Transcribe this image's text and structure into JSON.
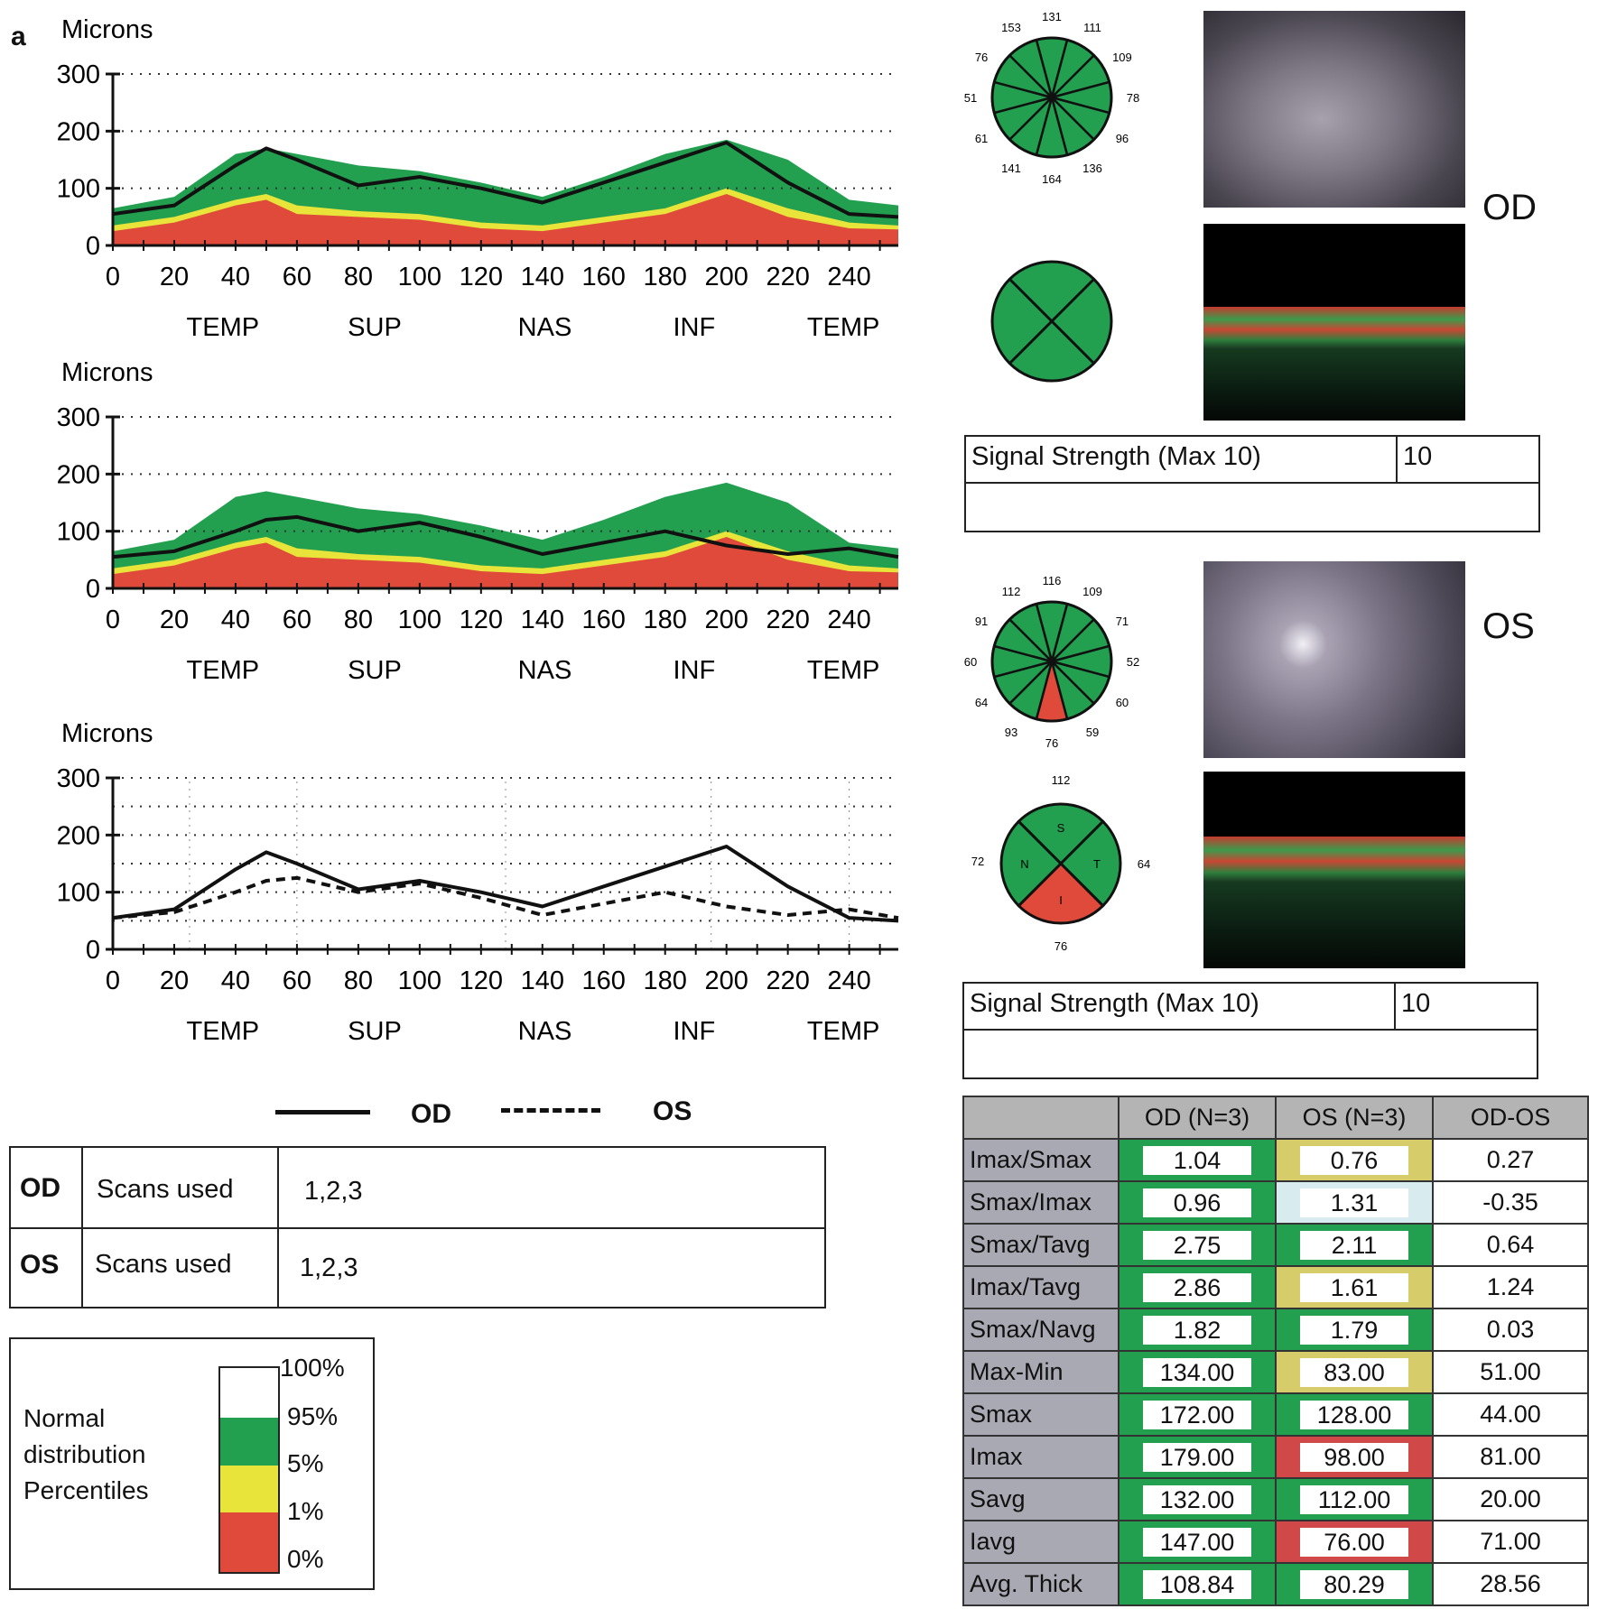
{
  "panel_label": "a",
  "chart_data": [
    {
      "type": "area",
      "ylabel": "Microns",
      "ylim": [
        0,
        300
      ],
      "yticks": [
        0,
        100,
        200,
        300
      ],
      "xlim": [
        0,
        256
      ],
      "xticks": [
        0,
        20,
        40,
        60,
        80,
        100,
        120,
        140,
        160,
        180,
        200,
        220,
        240
      ],
      "region_labels": [
        "TEMP",
        "SUP",
        "NAS",
        "INF",
        "TEMP"
      ],
      "x": [
        0,
        20,
        40,
        50,
        60,
        80,
        100,
        120,
        140,
        160,
        180,
        200,
        220,
        240,
        256
      ],
      "bands": [
        {
          "name": "95%",
          "color": "#22a050",
          "values": [
            65,
            85,
            160,
            170,
            160,
            140,
            130,
            110,
            85,
            120,
            160,
            185,
            150,
            80,
            70
          ]
        },
        {
          "name": "5%",
          "color": "#e8e43a",
          "values": [
            35,
            50,
            80,
            90,
            70,
            60,
            55,
            40,
            35,
            50,
            65,
            100,
            65,
            40,
            35
          ]
        },
        {
          "name": "1%",
          "color": "#e04a3a",
          "values": [
            25,
            40,
            70,
            80,
            55,
            50,
            45,
            30,
            25,
            40,
            55,
            90,
            50,
            30,
            28
          ]
        }
      ],
      "series": [
        {
          "name": "OD",
          "values": [
            55,
            70,
            140,
            170,
            150,
            105,
            120,
            100,
            75,
            110,
            145,
            180,
            110,
            55,
            50
          ]
        }
      ]
    },
    {
      "type": "area",
      "ylabel": "Microns",
      "ylim": [
        0,
        300
      ],
      "yticks": [
        0,
        100,
        200,
        300
      ],
      "xlim": [
        0,
        256
      ],
      "xticks": [
        0,
        20,
        40,
        60,
        80,
        100,
        120,
        140,
        160,
        180,
        200,
        220,
        240
      ],
      "region_labels": [
        "TEMP",
        "SUP",
        "NAS",
        "INF",
        "TEMP"
      ],
      "x": [
        0,
        20,
        40,
        50,
        60,
        80,
        100,
        120,
        140,
        160,
        180,
        200,
        220,
        240,
        256
      ],
      "bands": [
        {
          "name": "95%",
          "color": "#22a050",
          "values": [
            65,
            85,
            160,
            170,
            160,
            140,
            130,
            110,
            85,
            120,
            160,
            185,
            150,
            80,
            70
          ]
        },
        {
          "name": "5%",
          "color": "#e8e43a",
          "values": [
            35,
            50,
            80,
            90,
            70,
            60,
            55,
            40,
            35,
            50,
            65,
            100,
            65,
            40,
            35
          ]
        },
        {
          "name": "1%",
          "color": "#e04a3a",
          "values": [
            25,
            40,
            70,
            80,
            55,
            50,
            45,
            30,
            25,
            40,
            55,
            90,
            50,
            30,
            28
          ]
        }
      ],
      "series": [
        {
          "name": "OS",
          "values": [
            55,
            65,
            100,
            120,
            125,
            100,
            115,
            90,
            60,
            80,
            100,
            75,
            60,
            70,
            55
          ]
        }
      ]
    },
    {
      "type": "line",
      "ylabel": "Microns",
      "ylim": [
        0,
        300
      ],
      "yticks": [
        0,
        100,
        200,
        300
      ],
      "xlim": [
        0,
        256
      ],
      "xticks": [
        0,
        20,
        40,
        60,
        80,
        100,
        120,
        140,
        160,
        180,
        200,
        220,
        240
      ],
      "region_labels": [
        "TEMP",
        "SUP",
        "NAS",
        "INF",
        "TEMP"
      ],
      "x": [
        0,
        20,
        40,
        50,
        60,
        80,
        100,
        120,
        140,
        160,
        180,
        200,
        220,
        240,
        256
      ],
      "grid": true,
      "series": [
        {
          "name": "OD",
          "style": "solid",
          "values": [
            55,
            70,
            140,
            170,
            150,
            105,
            120,
            100,
            75,
            110,
            145,
            180,
            110,
            55,
            50
          ]
        },
        {
          "name": "OS",
          "style": "dashed",
          "values": [
            55,
            65,
            100,
            120,
            125,
            100,
            115,
            90,
            60,
            80,
            100,
            75,
            60,
            70,
            55
          ]
        }
      ],
      "legend": {
        "placement": "bottom",
        "items": [
          "OD",
          "OS"
        ]
      }
    }
  ],
  "scans_table": {
    "rows": [
      {
        "eye": "OD",
        "label": "Scans used",
        "value": "1,2,3"
      },
      {
        "eye": "OS",
        "label": "Scans used",
        "value": "1,2,3"
      }
    ]
  },
  "percentile_legend": {
    "label_lines": [
      "Normal",
      "distribution",
      "Percentiles"
    ],
    "ticks": [
      "100%",
      "95%",
      "5%",
      "1%",
      "0%"
    ],
    "colors": [
      "#ffffff",
      "#22a050",
      "#e8e43a",
      "#e04a3a"
    ]
  },
  "od_section": {
    "eye_label": "OD",
    "clock_values": [
      "131",
      "111",
      "109",
      "78",
      "96",
      "136",
      "164",
      "141",
      "61",
      "51",
      "76",
      "153"
    ],
    "signal_label": "Signal Strength (Max 10)",
    "signal_value": "10"
  },
  "os_section": {
    "eye_label": "OS",
    "clock_values": [
      "116",
      "109",
      "71",
      "52",
      "60",
      "59",
      "76",
      "93",
      "64",
      "60",
      "91",
      "112"
    ],
    "quadrant_values": [
      "112",
      "64",
      "76",
      "72"
    ],
    "quadrant_labels": [
      "S",
      "T",
      "I",
      "N"
    ],
    "signal_label": "Signal Strength (Max 10)",
    "signal_value": "10"
  },
  "ratio_table": {
    "headers": [
      "",
      "OD (N=3)",
      "OS (N=3)",
      "OD-OS"
    ],
    "rows": [
      {
        "label": "Imax/Smax",
        "od": "1.04",
        "os": "0.76",
        "diff": "0.27",
        "od_color": "#22a050",
        "os_color": "#d6cd6a"
      },
      {
        "label": "Smax/Imax",
        "od": "0.96",
        "os": "1.31",
        "diff": "-0.35",
        "od_color": "#22a050",
        "os_color": "#d8ecef"
      },
      {
        "label": "Smax/Tavg",
        "od": "2.75",
        "os": "2.11",
        "diff": "0.64",
        "od_color": "#22a050",
        "os_color": "#22a050"
      },
      {
        "label": "Imax/Tavg",
        "od": "2.86",
        "os": "1.61",
        "diff": "1.24",
        "od_color": "#22a050",
        "os_color": "#d6cd6a"
      },
      {
        "label": "Smax/Navg",
        "od": "1.82",
        "os": "1.79",
        "diff": "0.03",
        "od_color": "#22a050",
        "os_color": "#22a050"
      },
      {
        "label": "Max-Min",
        "od": "134.00",
        "os": "83.00",
        "diff": "51.00",
        "od_color": "#22a050",
        "os_color": "#d6cd6a"
      },
      {
        "label": "Smax",
        "od": "172.00",
        "os": "128.00",
        "diff": "44.00",
        "od_color": "#22a050",
        "os_color": "#22a050"
      },
      {
        "label": "Imax",
        "od": "179.00",
        "os": "98.00",
        "diff": "81.00",
        "od_color": "#22a050",
        "os_color": "#d04848"
      },
      {
        "label": "Savg",
        "od": "132.00",
        "os": "112.00",
        "diff": "20.00",
        "od_color": "#22a050",
        "os_color": "#22a050"
      },
      {
        "label": "Iavg",
        "od": "147.00",
        "os": "76.00",
        "diff": "71.00",
        "od_color": "#22a050",
        "os_color": "#d04848"
      },
      {
        "label": "Avg. Thick",
        "od": "108.84",
        "os": "80.29",
        "diff": "28.56",
        "od_color": "#22a050",
        "os_color": "#22a050"
      }
    ]
  }
}
